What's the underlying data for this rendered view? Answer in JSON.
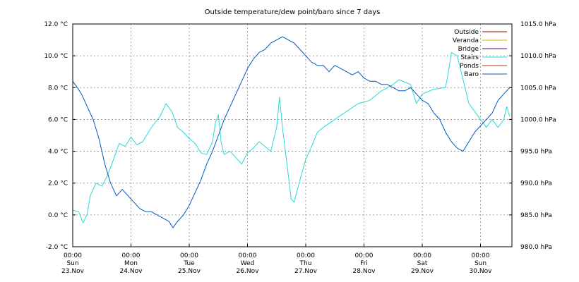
{
  "chart_data": {
    "type": "line",
    "title": "Outside temperature/dew point/baro since 7 days",
    "y_left": {
      "unit": "°C",
      "range": [
        -2,
        12
      ],
      "ticks": [
        "-2.0 °C",
        "0.0 °C",
        "2.0 °C",
        "4.0 °C",
        "6.0 °C",
        "8.0 °C",
        "10.0 °C",
        "12.0 °C"
      ]
    },
    "y_right": {
      "unit": "hPa",
      "range": [
        980,
        1015
      ],
      "ticks": [
        "980.0 hPa",
        "985.0 hPa",
        "990.0 hPa",
        "995.0 hPa",
        "1000.0 hPa",
        "1005.0 hPa",
        "1010.0 hPa",
        "1015.0 hPa"
      ]
    },
    "x_axis": {
      "range_days": [
        0,
        7.5
      ],
      "ticks": [
        {
          "time": "00:00",
          "weekday": "Sun",
          "date": "23.Nov"
        },
        {
          "time": "00:00",
          "weekday": "Mon",
          "date": "24.Nov"
        },
        {
          "time": "00:00",
          "weekday": "Tue",
          "date": "25.Nov"
        },
        {
          "time": "00:00",
          "weekday": "Wed",
          "date": "26.Nov"
        },
        {
          "time": "00:00",
          "weekday": "Thu",
          "date": "27.Nov"
        },
        {
          "time": "00:00",
          "weekday": "Fri",
          "date": "28.Nov"
        },
        {
          "time": "00:00",
          "weekday": "Sat",
          "date": "29.Nov"
        },
        {
          "time": "00:00",
          "weekday": "Sun",
          "date": "30.Nov"
        }
      ]
    },
    "grid": true,
    "legend_position": "top-right",
    "series": [
      {
        "name": "Outside",
        "color": "#8b0000",
        "axis": "left",
        "points": []
      },
      {
        "name": "Veranda",
        "color": "#e8b000",
        "axis": "left",
        "points": []
      },
      {
        "name": "Bridge",
        "color": "#5a0078",
        "axis": "left",
        "points": []
      },
      {
        "name": "Stairs",
        "color": "#28d8d8",
        "axis": "left",
        "points": [
          [
            0,
            0.3
          ],
          [
            0.1,
            0.2
          ],
          [
            0.18,
            -0.5
          ],
          [
            0.25,
            0.1
          ],
          [
            0.3,
            1.2
          ],
          [
            0.4,
            2.0
          ],
          [
            0.5,
            1.8
          ],
          [
            0.6,
            2.5
          ],
          [
            0.7,
            3.5
          ],
          [
            0.8,
            4.5
          ],
          [
            0.9,
            4.3
          ],
          [
            1.0,
            4.9
          ],
          [
            1.1,
            4.4
          ],
          [
            1.2,
            4.6
          ],
          [
            1.35,
            5.5
          ],
          [
            1.5,
            6.2
          ],
          [
            1.6,
            7.0
          ],
          [
            1.7,
            6.5
          ],
          [
            1.8,
            5.5
          ],
          [
            1.9,
            5.2
          ],
          [
            2.0,
            4.8
          ],
          [
            2.1,
            4.5
          ],
          [
            2.2,
            3.9
          ],
          [
            2.3,
            3.8
          ],
          [
            2.4,
            4.6
          ],
          [
            2.45,
            5.8
          ],
          [
            2.5,
            6.3
          ],
          [
            2.55,
            4.5
          ],
          [
            2.6,
            3.8
          ],
          [
            2.7,
            4.0
          ],
          [
            2.8,
            3.6
          ],
          [
            2.9,
            3.2
          ],
          [
            3.0,
            3.9
          ],
          [
            3.1,
            4.2
          ],
          [
            3.2,
            4.6
          ],
          [
            3.3,
            4.3
          ],
          [
            3.4,
            4.0
          ],
          [
            3.5,
            5.5
          ],
          [
            3.55,
            7.4
          ],
          [
            3.6,
            5.5
          ],
          [
            3.7,
            2.5
          ],
          [
            3.75,
            1.0
          ],
          [
            3.8,
            0.8
          ],
          [
            3.85,
            1.5
          ],
          [
            3.9,
            2.2
          ],
          [
            4.0,
            3.5
          ],
          [
            4.1,
            4.3
          ],
          [
            4.2,
            5.2
          ],
          [
            4.3,
            5.5
          ],
          [
            4.5,
            6.0
          ],
          [
            4.7,
            6.5
          ],
          [
            4.9,
            7.0
          ],
          [
            5.1,
            7.2
          ],
          [
            5.3,
            7.8
          ],
          [
            5.5,
            8.2
          ],
          [
            5.6,
            8.5
          ],
          [
            5.8,
            8.2
          ],
          [
            5.9,
            7.0
          ],
          [
            6.0,
            7.6
          ],
          [
            6.2,
            7.9
          ],
          [
            6.4,
            8.0
          ],
          [
            6.45,
            9.0
          ],
          [
            6.5,
            10.2
          ],
          [
            6.6,
            10.0
          ],
          [
            6.7,
            8.5
          ],
          [
            6.8,
            7.0
          ],
          [
            6.9,
            6.5
          ],
          [
            7.0,
            6.0
          ],
          [
            7.1,
            5.5
          ],
          [
            7.2,
            6.0
          ],
          [
            7.3,
            5.5
          ],
          [
            7.4,
            6.0
          ],
          [
            7.45,
            6.8
          ],
          [
            7.5,
            6.2
          ]
        ]
      },
      {
        "name": "Ponds",
        "color": "#a83800",
        "axis": "left",
        "points": []
      },
      {
        "name": "Baro",
        "color": "#0058c0",
        "axis": "right",
        "points": [
          [
            0,
            1006
          ],
          [
            0.08,
            1005
          ],
          [
            0.15,
            1004
          ],
          [
            0.25,
            1002
          ],
          [
            0.35,
            1000
          ],
          [
            0.45,
            997
          ],
          [
            0.55,
            993
          ],
          [
            0.65,
            990
          ],
          [
            0.75,
            988
          ],
          [
            0.85,
            989
          ],
          [
            0.95,
            988
          ],
          [
            1.05,
            987
          ],
          [
            1.15,
            986
          ],
          [
            1.25,
            985.5
          ],
          [
            1.35,
            985.5
          ],
          [
            1.45,
            985
          ],
          [
            1.55,
            984.5
          ],
          [
            1.65,
            984
          ],
          [
            1.72,
            983
          ],
          [
            1.8,
            984
          ],
          [
            1.9,
            985
          ],
          [
            2.0,
            986.5
          ],
          [
            2.1,
            988.5
          ],
          [
            2.2,
            990.5
          ],
          [
            2.3,
            993
          ],
          [
            2.4,
            995
          ],
          [
            2.5,
            997.5
          ],
          [
            2.6,
            1000
          ],
          [
            2.7,
            1002
          ],
          [
            2.8,
            1004
          ],
          [
            2.9,
            1006
          ],
          [
            3.0,
            1008
          ],
          [
            3.1,
            1009.5
          ],
          [
            3.2,
            1010.5
          ],
          [
            3.3,
            1011
          ],
          [
            3.4,
            1012
          ],
          [
            3.5,
            1012.5
          ],
          [
            3.6,
            1013
          ],
          [
            3.7,
            1012.5
          ],
          [
            3.8,
            1012
          ],
          [
            3.9,
            1011
          ],
          [
            4.0,
            1010
          ],
          [
            4.1,
            1009
          ],
          [
            4.2,
            1008.5
          ],
          [
            4.3,
            1008.5
          ],
          [
            4.4,
            1007.5
          ],
          [
            4.5,
            1008.5
          ],
          [
            4.6,
            1008
          ],
          [
            4.7,
            1007.5
          ],
          [
            4.8,
            1007
          ],
          [
            4.9,
            1007.5
          ],
          [
            5.0,
            1006.5
          ],
          [
            5.1,
            1006
          ],
          [
            5.2,
            1006
          ],
          [
            5.3,
            1005.5
          ],
          [
            5.4,
            1005.5
          ],
          [
            5.5,
            1005
          ],
          [
            5.6,
            1004.5
          ],
          [
            5.7,
            1004.5
          ],
          [
            5.8,
            1005
          ],
          [
            5.9,
            1004
          ],
          [
            6.0,
            1003
          ],
          [
            6.1,
            1002.5
          ],
          [
            6.2,
            1001
          ],
          [
            6.3,
            1000
          ],
          [
            6.4,
            998
          ],
          [
            6.5,
            996.5
          ],
          [
            6.6,
            995.5
          ],
          [
            6.7,
            995
          ],
          [
            6.8,
            996.5
          ],
          [
            6.9,
            998
          ],
          [
            7.0,
            999
          ],
          [
            7.1,
            1000
          ],
          [
            7.2,
            1001
          ],
          [
            7.3,
            1003
          ],
          [
            7.4,
            1004
          ],
          [
            7.5,
            1005
          ]
        ]
      }
    ]
  }
}
